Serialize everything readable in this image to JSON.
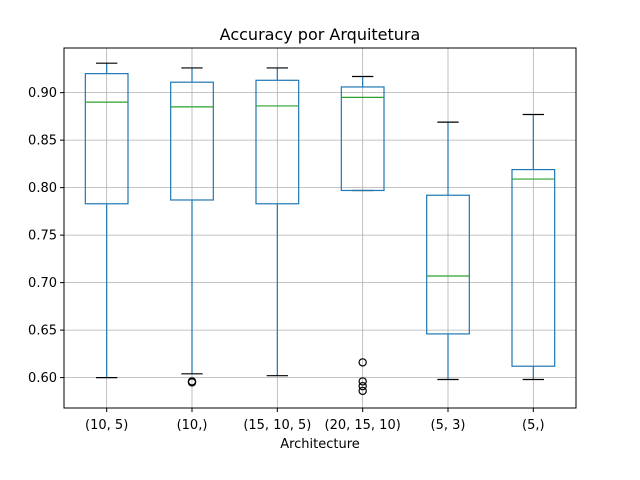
{
  "chart_data": {
    "type": "box",
    "title": "Accuracy por Arquitetura",
    "xlabel": "Architecture",
    "ylabel": "",
    "ylim": [
      0.568,
      0.947
    ],
    "yticks": [
      0.6,
      0.65,
      0.7,
      0.75,
      0.8,
      0.85,
      0.9
    ],
    "ytick_labels": [
      "0.60",
      "0.65",
      "0.70",
      "0.75",
      "0.80",
      "0.85",
      "0.90"
    ],
    "grid": true,
    "categories": [
      "(10, 5)",
      "(10,)",
      "(15, 10, 5)",
      "(20, 15, 10)",
      "(5, 3)",
      "(5,)"
    ],
    "boxes": [
      {
        "category": "(10, 5)",
        "whisker_low": 0.6,
        "q1": 0.783,
        "median": 0.89,
        "q3": 0.92,
        "whisker_high": 0.931,
        "outliers": []
      },
      {
        "category": "(10,)",
        "whisker_low": 0.604,
        "q1": 0.787,
        "median": 0.885,
        "q3": 0.911,
        "whisker_high": 0.926,
        "outliers": [
          0.596,
          0.595
        ]
      },
      {
        "category": "(15, 10, 5)",
        "whisker_low": 0.602,
        "q1": 0.783,
        "median": 0.886,
        "q3": 0.913,
        "whisker_high": 0.926,
        "outliers": []
      },
      {
        "category": "(20, 15, 10)",
        "whisker_low": 0.797,
        "q1": 0.797,
        "median": 0.895,
        "q3": 0.906,
        "whisker_high": 0.917,
        "outliers": [
          0.616,
          0.596,
          0.591,
          0.586
        ]
      },
      {
        "category": "(5, 3)",
        "whisker_low": 0.598,
        "q1": 0.646,
        "median": 0.707,
        "q3": 0.792,
        "whisker_high": 0.869,
        "outliers": []
      },
      {
        "category": "(5,)",
        "whisker_low": 0.598,
        "q1": 0.612,
        "median": 0.809,
        "q3": 0.819,
        "whisker_high": 0.877,
        "outliers": []
      }
    ],
    "colors": {
      "box": "#1f77b4",
      "median": "#2ca02c",
      "cap": "#000000",
      "outlier": "#000000",
      "grid": "#b0b0b0",
      "axes": "#000000"
    }
  }
}
